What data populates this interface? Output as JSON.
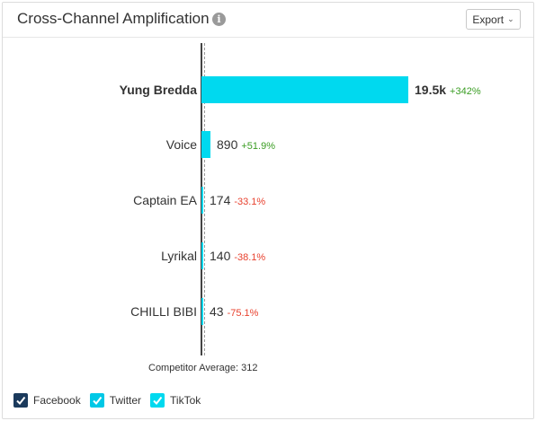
{
  "header": {
    "title": "Cross-Channel Amplification",
    "info_icon": "i",
    "export_label": "Export",
    "export_chevron": "⌄"
  },
  "chart_data": {
    "type": "bar",
    "orientation": "horizontal",
    "categories": [
      "Yung Bredda",
      "Voice",
      "Captain EA",
      "Lyrikal",
      "CHILLI BIBI"
    ],
    "values": [
      19500,
      890,
      174,
      140,
      43
    ],
    "value_labels": [
      "19.5k",
      "890",
      "174",
      "140",
      "43"
    ],
    "changes": [
      "+342%",
      "+51.9%",
      "-33.1%",
      "-38.1%",
      "-75.1%"
    ],
    "change_colors": [
      "#3a9d23",
      "#3a9d23",
      "#e8412e",
      "#e8412e",
      "#e8412e"
    ],
    "highlight_index": 0,
    "bar_color": "#00d9ef",
    "competitor_average": 312,
    "competitor_average_label": "Competitor Average: 312",
    "legend": [
      {
        "label": "Facebook",
        "color": "#1b3a5c",
        "checked": true
      },
      {
        "label": "Twitter",
        "color": "#00c8e6",
        "checked": true
      },
      {
        "label": "TikTok",
        "color": "#00d9ef",
        "checked": true
      }
    ]
  }
}
